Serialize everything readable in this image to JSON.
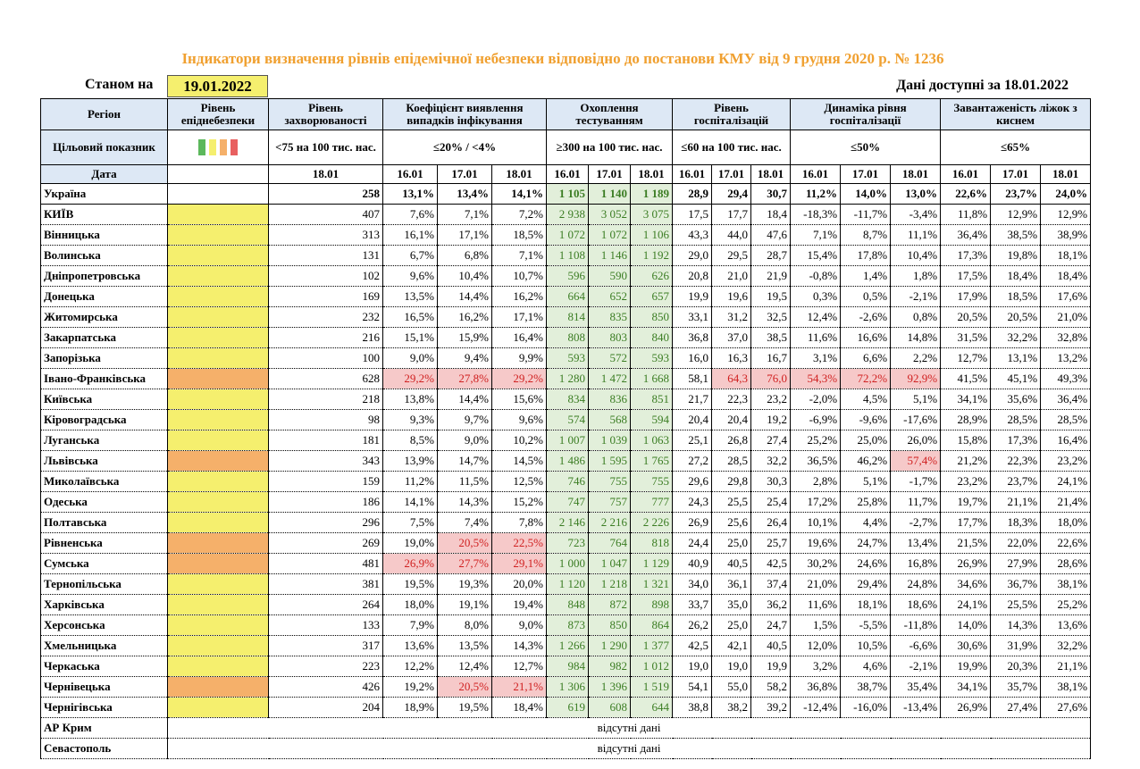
{
  "title": "Індикатори визначення рівнів епідемічної небезпеки відповідно до постанови КМУ від 9 грудня 2020 р. № 1236",
  "as_of_label": "Станом на",
  "as_of_date": "19.01.2022",
  "available": "Дані доступні за 18.01.2022",
  "header": {
    "region": "Регіон",
    "level": "Рівень епіднебезпеки",
    "target_label": "Цільовий показник",
    "date_label": "Дата",
    "level_colors": [
      "#5cb85c",
      "#f5ef6e",
      "#f5b06a",
      "#e86060"
    ],
    "groups": [
      {
        "name": "Рівень захворюваності",
        "target": "<75 на 100 тис. нас.",
        "dates": [
          "18.01"
        ]
      },
      {
        "name": "Коефіцієнт виявлення випадків інфікування",
        "target": "≤20% / <4%",
        "dates": [
          "16.01",
          "17.01",
          "18.01"
        ]
      },
      {
        "name": "Охоплення тестуванням",
        "target": "≥300 на 100 тис. нас.",
        "dates": [
          "16.01",
          "17.01",
          "18.01"
        ],
        "color": "#e2efda",
        "text_color": "#3b7d23"
      },
      {
        "name": "Рівень госпіталізацій",
        "target": "≤60 на 100 тис. нас.",
        "dates": [
          "16.01",
          "17.01",
          "18.01"
        ]
      },
      {
        "name": "Динаміка рівня госпіталізації",
        "target": "≤50%",
        "dates": [
          "16.01",
          "17.01",
          "18.01"
        ]
      },
      {
        "name": "Завантаженість ліжок з киснем",
        "target": "≤65%",
        "dates": [
          "16.01",
          "17.01",
          "18.01"
        ]
      }
    ]
  },
  "highlight_color": "#f6c9c9",
  "highlight_text": "#d02020",
  "rows": [
    {
      "region": "Україна",
      "values": [
        "258",
        "13,1%",
        "13,4%",
        "14,1%",
        "1 105",
        "1 140",
        "1 189",
        "28,9",
        "29,4",
        "30,7",
        "11,2%",
        "14,0%",
        "13,0%",
        "22,6%",
        "23,7%",
        "24,0%"
      ]
    },
    {
      "region": "КИЇВ",
      "level": "#f5ef6e",
      "values": [
        "407",
        "7,6%",
        "7,1%",
        "7,2%",
        "2 938",
        "3 052",
        "3 075",
        "17,5",
        "17,7",
        "18,4",
        "-18,3%",
        "-11,7%",
        "-3,4%",
        "11,8%",
        "12,9%",
        "12,9%"
      ]
    },
    {
      "region": "Вінницька",
      "level": "#f5ef6e",
      "values": [
        "313",
        "16,1%",
        "17,1%",
        "18,5%",
        "1 072",
        "1 072",
        "1 106",
        "43,3",
        "44,0",
        "47,6",
        "7,1%",
        "8,7%",
        "11,1%",
        "36,4%",
        "38,5%",
        "38,9%"
      ]
    },
    {
      "region": "Волинська",
      "level": "#f5ef6e",
      "values": [
        "131",
        "6,7%",
        "6,8%",
        "7,1%",
        "1 108",
        "1 146",
        "1 192",
        "29,0",
        "29,5",
        "28,7",
        "15,4%",
        "17,8%",
        "10,4%",
        "17,3%",
        "19,8%",
        "18,1%"
      ]
    },
    {
      "region": "Дніпропетровська",
      "level": "#f5ef6e",
      "values": [
        "102",
        "9,6%",
        "10,4%",
        "10,7%",
        "596",
        "590",
        "626",
        "20,8",
        "21,0",
        "21,9",
        "-0,8%",
        "1,4%",
        "1,8%",
        "17,5%",
        "18,4%",
        "18,4%"
      ]
    },
    {
      "region": "Донецька",
      "level": "#f5ef6e",
      "values": [
        "169",
        "13,5%",
        "14,4%",
        "16,2%",
        "664",
        "652",
        "657",
        "19,9",
        "19,6",
        "19,5",
        "0,3%",
        "0,5%",
        "-2,1%",
        "17,9%",
        "18,5%",
        "17,6%"
      ]
    },
    {
      "region": "Житомирська",
      "level": "#f5ef6e",
      "values": [
        "232",
        "16,5%",
        "16,2%",
        "17,1%",
        "814",
        "835",
        "850",
        "33,1",
        "31,2",
        "32,5",
        "12,4%",
        "-2,6%",
        "0,8%",
        "20,5%",
        "20,5%",
        "21,0%"
      ]
    },
    {
      "region": "Закарпатська",
      "level": "#f5ef6e",
      "values": [
        "216",
        "15,1%",
        "15,9%",
        "16,4%",
        "808",
        "803",
        "840",
        "36,8",
        "37,0",
        "38,5",
        "11,6%",
        "16,6%",
        "14,8%",
        "31,5%",
        "32,2%",
        "32,8%"
      ]
    },
    {
      "region": "Запорізька",
      "level": "#f5ef6e",
      "values": [
        "100",
        "9,0%",
        "9,4%",
        "9,9%",
        "593",
        "572",
        "593",
        "16,0",
        "16,3",
        "16,7",
        "3,1%",
        "6,6%",
        "2,2%",
        "12,7%",
        "13,1%",
        "13,2%"
      ]
    },
    {
      "region": "Івано-Франківська",
      "level": "#f5b06a",
      "highlight": [
        1,
        2,
        3,
        8,
        9,
        10,
        11,
        12
      ],
      "values": [
        "628",
        "29,2%",
        "27,8%",
        "29,2%",
        "1 280",
        "1 472",
        "1 668",
        "58,1",
        "64,3",
        "76,0",
        "54,3%",
        "72,2%",
        "92,9%",
        "41,5%",
        "45,1%",
        "49,3%"
      ]
    },
    {
      "region": "Київська",
      "level": "#f5ef6e",
      "values": [
        "218",
        "13,8%",
        "14,4%",
        "15,6%",
        "834",
        "836",
        "851",
        "21,7",
        "22,3",
        "23,2",
        "-2,0%",
        "4,5%",
        "5,1%",
        "34,1%",
        "35,6%",
        "36,4%"
      ]
    },
    {
      "region": "Кіровоградська",
      "level": "#f5ef6e",
      "values": [
        "98",
        "9,3%",
        "9,7%",
        "9,6%",
        "574",
        "568",
        "594",
        "20,4",
        "20,4",
        "19,2",
        "-6,9%",
        "-9,6%",
        "-17,6%",
        "28,9%",
        "28,5%",
        "28,5%"
      ]
    },
    {
      "region": "Луганська",
      "level": "#f5ef6e",
      "values": [
        "181",
        "8,5%",
        "9,0%",
        "10,2%",
        "1 007",
        "1 039",
        "1 063",
        "25,1",
        "26,8",
        "27,4",
        "25,2%",
        "25,0%",
        "26,0%",
        "15,8%",
        "17,3%",
        "16,4%"
      ]
    },
    {
      "region": "Львівська",
      "level": "#f5b06a",
      "highlight": [
        12
      ],
      "values": [
        "343",
        "13,9%",
        "14,7%",
        "14,5%",
        "1 486",
        "1 595",
        "1 765",
        "27,2",
        "28,5",
        "32,2",
        "36,5%",
        "46,2%",
        "57,4%",
        "21,2%",
        "22,3%",
        "23,2%"
      ]
    },
    {
      "region": "Миколаївська",
      "level": "#f5ef6e",
      "values": [
        "159",
        "11,2%",
        "11,5%",
        "12,5%",
        "746",
        "755",
        "755",
        "29,6",
        "29,8",
        "30,3",
        "2,8%",
        "5,1%",
        "-1,7%",
        "23,2%",
        "23,7%",
        "24,1%"
      ]
    },
    {
      "region": "Одеська",
      "level": "#f5ef6e",
      "values": [
        "186",
        "14,1%",
        "14,3%",
        "15,2%",
        "747",
        "757",
        "777",
        "24,3",
        "25,5",
        "25,4",
        "17,2%",
        "25,8%",
        "11,7%",
        "19,7%",
        "21,1%",
        "21,4%"
      ]
    },
    {
      "region": "Полтавська",
      "level": "#f5ef6e",
      "values": [
        "296",
        "7,5%",
        "7,4%",
        "7,8%",
        "2 146",
        "2 216",
        "2 226",
        "26,9",
        "25,6",
        "26,4",
        "10,1%",
        "4,4%",
        "-2,7%",
        "17,7%",
        "18,3%",
        "18,0%"
      ]
    },
    {
      "region": "Рівненська",
      "level": "#f5b06a",
      "highlight": [
        2,
        3
      ],
      "values": [
        "269",
        "19,0%",
        "20,5%",
        "22,5%",
        "723",
        "764",
        "818",
        "24,4",
        "25,0",
        "25,7",
        "19,6%",
        "24,7%",
        "13,4%",
        "21,5%",
        "22,0%",
        "22,6%"
      ]
    },
    {
      "region": "Сумська",
      "level": "#f5b06a",
      "highlight": [
        1,
        2,
        3
      ],
      "values": [
        "481",
        "26,9%",
        "27,7%",
        "29,1%",
        "1 000",
        "1 047",
        "1 129",
        "40,9",
        "40,5",
        "42,5",
        "30,2%",
        "24,6%",
        "16,8%",
        "26,9%",
        "27,9%",
        "28,6%"
      ]
    },
    {
      "region": "Тернопільська",
      "level": "#f5ef6e",
      "values": [
        "381",
        "19,5%",
        "19,3%",
        "20,0%",
        "1 120",
        "1 218",
        "1 321",
        "34,0",
        "36,1",
        "37,4",
        "21,0%",
        "29,4%",
        "24,8%",
        "34,6%",
        "36,7%",
        "38,1%"
      ]
    },
    {
      "region": "Харківська",
      "level": "#f5ef6e",
      "values": [
        "264",
        "18,0%",
        "19,1%",
        "19,4%",
        "848",
        "872",
        "898",
        "33,7",
        "35,0",
        "36,2",
        "11,6%",
        "18,1%",
        "18,6%",
        "24,1%",
        "25,5%",
        "25,2%"
      ]
    },
    {
      "region": "Херсонська",
      "level": "#f5ef6e",
      "values": [
        "133",
        "7,9%",
        "8,0%",
        "9,0%",
        "873",
        "850",
        "864",
        "26,2",
        "25,0",
        "24,7",
        "1,5%",
        "-5,5%",
        "-11,8%",
        "14,0%",
        "14,3%",
        "13,6%"
      ]
    },
    {
      "region": "Хмельницька",
      "level": "#f5ef6e",
      "values": [
        "317",
        "13,6%",
        "13,5%",
        "14,3%",
        "1 266",
        "1 290",
        "1 377",
        "42,5",
        "42,1",
        "40,5",
        "12,0%",
        "10,5%",
        "-6,6%",
        "30,6%",
        "31,9%",
        "32,2%"
      ]
    },
    {
      "region": "Черкаська",
      "level": "#f5ef6e",
      "values": [
        "223",
        "12,2%",
        "12,4%",
        "12,7%",
        "984",
        "982",
        "1 012",
        "19,0",
        "19,0",
        "19,9",
        "3,2%",
        "4,6%",
        "-2,1%",
        "19,9%",
        "20,3%",
        "21,1%"
      ]
    },
    {
      "region": "Чернівецька",
      "level": "#f5b06a",
      "highlight": [
        2,
        3
      ],
      "values": [
        "426",
        "19,2%",
        "20,5%",
        "21,1%",
        "1 306",
        "1 396",
        "1 519",
        "54,1",
        "55,0",
        "58,2",
        "36,8%",
        "38,7%",
        "35,4%",
        "34,1%",
        "35,7%",
        "38,1%"
      ]
    },
    {
      "region": "Чернігівська",
      "level": "#f5ef6e",
      "values": [
        "204",
        "18,9%",
        "19,5%",
        "18,4%",
        "619",
        "608",
        "644",
        "38,8",
        "38,2",
        "39,2",
        "-12,4%",
        "-16,0%",
        "-13,4%",
        "26,9%",
        "27,4%",
        "27,6%"
      ]
    }
  ],
  "missing": [
    {
      "region": "АР Крим",
      "note": "відсутні дані"
    },
    {
      "region": "Севастополь",
      "note": "відсутні дані"
    }
  ]
}
